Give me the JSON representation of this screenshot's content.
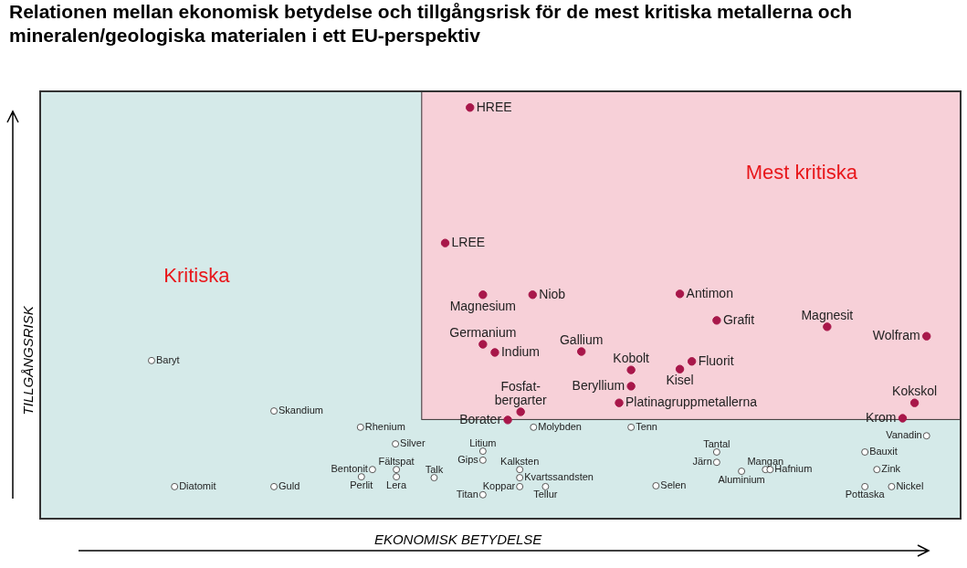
{
  "chart_data": {
    "type": "scatter",
    "title": "Relationen mellan ekonomisk betydelse och tillgångsrisk för de mest kritiska metallerna och mineralen/geologiska materialen i ett EU-perspektiv",
    "x_label": "EKONOMISK BETYDELSE",
    "y_label": "TILLGÅNGSRISK",
    "xlim": [
      0,
      100
    ],
    "ylim": [
      0,
      100
    ],
    "tick_labels": false,
    "grid": false,
    "regions": [
      {
        "label": "Kritiska",
        "color": "#d5eae9",
        "xlim": [
          0,
          100
        ],
        "ylim": [
          0,
          100
        ]
      },
      {
        "label": "Mest kritiska",
        "color": "#f7d0d8",
        "xlim": [
          41.4,
          100
        ],
        "ylim": [
          23.1,
          100
        ]
      }
    ],
    "series": [
      {
        "marker": "circle",
        "color": "#a8174a",
        "points": [
          {
            "label": "HREE",
            "x": 46.7,
            "y": 96.2
          },
          {
            "label": "LREE",
            "x": 44.0,
            "y": 64.5
          },
          {
            "label": "Magnesium",
            "x": 48.1,
            "y": 52.4
          },
          {
            "label": "Niob",
            "x": 53.5,
            "y": 52.4
          },
          {
            "label": "Antimon",
            "x": 69.5,
            "y": 52.6
          },
          {
            "label": "Grafit",
            "x": 73.5,
            "y": 46.4
          },
          {
            "label": "Magnesit",
            "x": 85.5,
            "y": 44.9
          },
          {
            "label": "Wolfram",
            "x": 96.3,
            "y": 42.7
          },
          {
            "label": "Germanium",
            "x": 48.1,
            "y": 40.8
          },
          {
            "label": "Indium",
            "x": 49.4,
            "y": 38.9
          },
          {
            "label": "Gallium",
            "x": 58.8,
            "y": 39.1
          },
          {
            "label": "Kobolt",
            "x": 64.2,
            "y": 34.8
          },
          {
            "label": "Fluorit",
            "x": 70.8,
            "y": 36.8
          },
          {
            "label": "Kisel",
            "x": 69.5,
            "y": 35.0
          },
          {
            "label": "Beryllium",
            "x": 64.2,
            "y": 31.0
          },
          {
            "label": "Fosfat-\nbergarter",
            "x": 52.2,
            "y": 25.0
          },
          {
            "label": "Platinagruppmetallerna",
            "x": 62.9,
            "y": 27.1
          },
          {
            "label": "Borater",
            "x": 50.8,
            "y": 23.1
          },
          {
            "label": "Kokskol",
            "x": 95.0,
            "y": 27.1
          },
          {
            "label": "Krom",
            "x": 93.7,
            "y": 23.5
          }
        ]
      },
      {
        "marker": "circle-open",
        "color": "#555555",
        "points": [
          {
            "label": "Baryt",
            "x": 12.1,
            "y": 37.0
          },
          {
            "label": "Skandium",
            "x": 25.4,
            "y": 25.2
          },
          {
            "label": "Rhenium",
            "x": 34.8,
            "y": 21.4
          },
          {
            "label": "Silver",
            "x": 38.6,
            "y": 17.5
          },
          {
            "label": "Bentonit",
            "x": 36.1,
            "y": 11.5
          },
          {
            "label": "Fältspat",
            "x": 38.7,
            "y": 11.5
          },
          {
            "label": "Perlit",
            "x": 34.9,
            "y": 9.8
          },
          {
            "label": "Lera",
            "x": 38.7,
            "y": 9.8
          },
          {
            "label": "Talk",
            "x": 42.8,
            "y": 9.6
          },
          {
            "label": "Diatomit",
            "x": 14.6,
            "y": 7.5
          },
          {
            "label": "Guld",
            "x": 25.4,
            "y": 7.5
          },
          {
            "label": "Molybden",
            "x": 53.6,
            "y": 21.4
          },
          {
            "label": "Litium",
            "x": 48.1,
            "y": 15.8
          },
          {
            "label": "Gips",
            "x": 48.1,
            "y": 13.7
          },
          {
            "label": "Kalksten",
            "x": 52.1,
            "y": 11.5
          },
          {
            "label": "Kvartssandsten",
            "x": 52.1,
            "y": 9.6
          },
          {
            "label": "Koppar",
            "x": 52.1,
            "y": 7.5
          },
          {
            "label": "Titan",
            "x": 48.1,
            "y": 5.6
          },
          {
            "label": "Tellur",
            "x": 54.9,
            "y": 7.5
          },
          {
            "label": "Tenn",
            "x": 64.2,
            "y": 21.4
          },
          {
            "label": "Selen",
            "x": 66.9,
            "y": 7.7
          },
          {
            "label": "Tantal",
            "x": 73.5,
            "y": 15.6
          },
          {
            "label": "Järn",
            "x": 73.5,
            "y": 13.2
          },
          {
            "label": "Aluminium",
            "x": 76.2,
            "y": 11.1
          },
          {
            "label": "Mangan",
            "x": 78.8,
            "y": 11.5
          },
          {
            "label": "Hafnium",
            "x": 79.3,
            "y": 11.5
          },
          {
            "label": "Vanadin",
            "x": 96.3,
            "y": 19.4
          },
          {
            "label": "Bauxit",
            "x": 89.6,
            "y": 15.6
          },
          {
            "label": "Zink",
            "x": 90.9,
            "y": 11.5
          },
          {
            "label": "Pottaska",
            "x": 89.6,
            "y": 7.5
          },
          {
            "label": "Nickel",
            "x": 92.5,
            "y": 7.5
          }
        ]
      }
    ]
  }
}
